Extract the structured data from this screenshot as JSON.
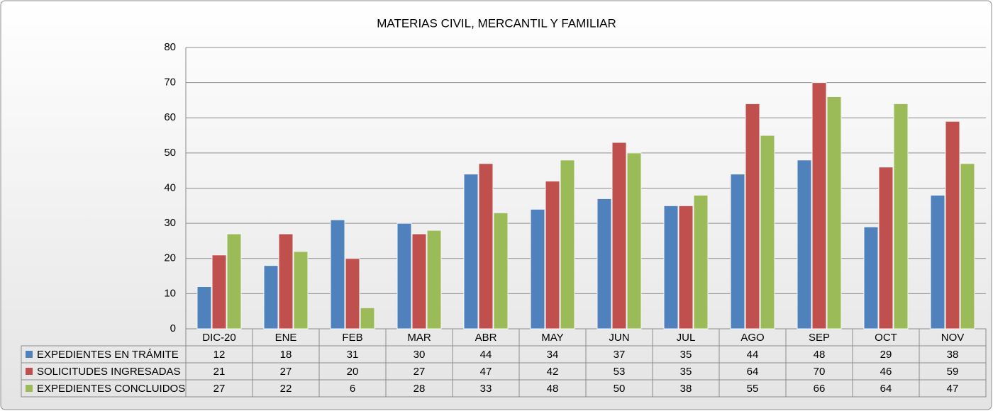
{
  "chart_data": {
    "type": "bar",
    "title": "MATERIAS CIVIL, MERCANTIL Y FAMILIAR",
    "categories": [
      "DIC-20",
      "ENE",
      "FEB",
      "MAR",
      "ABR",
      "MAY",
      "JUN",
      "JUL",
      "AGO",
      "SEP",
      "OCT",
      "NOV"
    ],
    "series": [
      {
        "name": "EXPEDIENTES EN TRÁMITE",
        "color": "#4f81bd",
        "values": [
          12,
          18,
          31,
          30,
          44,
          34,
          37,
          35,
          44,
          48,
          29,
          38
        ]
      },
      {
        "name": "SOLICITUDES INGRESADAS",
        "color": "#c0504d",
        "values": [
          21,
          27,
          20,
          27,
          47,
          42,
          53,
          35,
          64,
          70,
          46,
          59
        ]
      },
      {
        "name": "EXPEDIENTES CONCLUIDOS",
        "color": "#9bbb59",
        "values": [
          27,
          22,
          6,
          28,
          33,
          48,
          50,
          38,
          55,
          66,
          64,
          47
        ]
      }
    ],
    "ylim": [
      0,
      80
    ],
    "yticks": [
      0,
      10,
      20,
      30,
      40,
      50,
      60,
      70,
      80
    ],
    "grid": true
  }
}
